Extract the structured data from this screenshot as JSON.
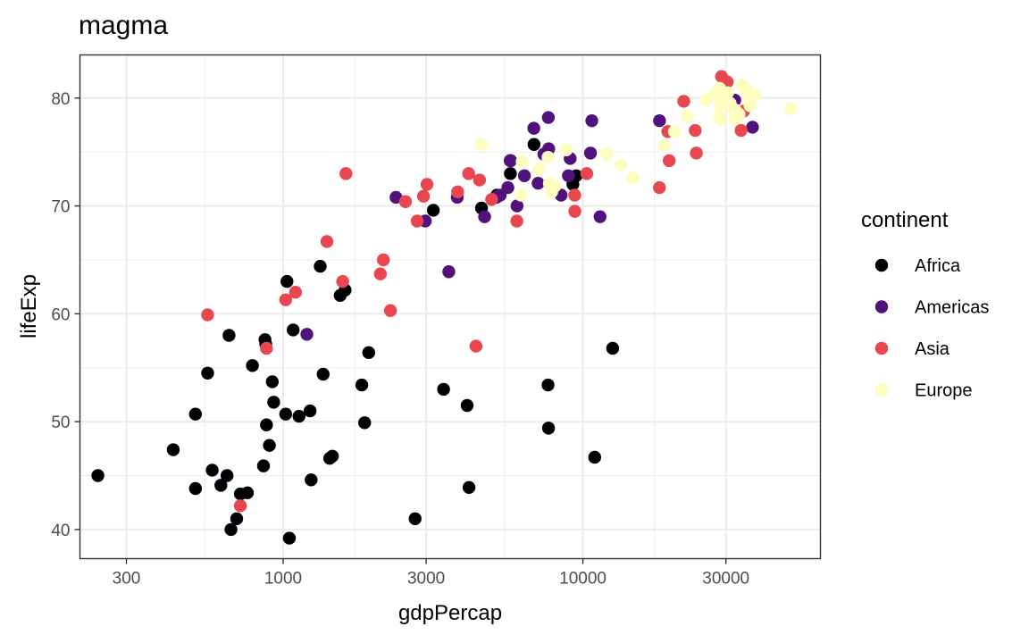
{
  "chart_data": {
    "type": "scatter",
    "title": "magma",
    "xlabel": "gdpPercap",
    "ylabel": "lifeExp",
    "x_scale": "log10",
    "xlim": [
      210,
      62000
    ],
    "ylim": [
      37.3,
      84
    ],
    "x_ticks": [
      300,
      1000,
      3000,
      10000,
      30000
    ],
    "x_tick_labels": [
      "300",
      "1000",
      "3000",
      "10000",
      "30000"
    ],
    "y_ticks": [
      40,
      50,
      60,
      70,
      80
    ],
    "y_tick_labels": [
      "40",
      "50",
      "60",
      "70",
      "80"
    ],
    "grid": true,
    "legend": {
      "title": "continent",
      "position": "right",
      "entries": [
        {
          "name": "Africa",
          "color": "#000004"
        },
        {
          "name": "Americas",
          "color": "#51127C"
        },
        {
          "name": "Asia",
          "color": "#E8474F"
        },
        {
          "name": "Europe",
          "color": "#FCFDBF"
        }
      ]
    },
    "series": [
      {
        "name": "Africa",
        "color": "#000004",
        "points": [
          [
            241,
            45.0
          ],
          [
            1049,
            39.2
          ],
          [
            2756,
            41.0
          ],
          [
            4170,
            43.9
          ],
          [
            430,
            47.4
          ],
          [
            510,
            43.8
          ],
          [
            580,
            45.5
          ],
          [
            620,
            44.1
          ],
          [
            650,
            45.0
          ],
          [
            670,
            40.0
          ],
          [
            700,
            41.0
          ],
          [
            720,
            43.3
          ],
          [
            760,
            43.4
          ],
          [
            860,
            45.9
          ],
          [
            880,
            49.7
          ],
          [
            900,
            47.8
          ],
          [
            920,
            53.7
          ],
          [
            930,
            51.8
          ],
          [
            1020,
            50.7
          ],
          [
            1130,
            50.5
          ],
          [
            1230,
            51.0
          ],
          [
            1240,
            44.6
          ],
          [
            1430,
            46.6
          ],
          [
            1460,
            46.8
          ],
          [
            1830,
            53.4
          ],
          [
            1870,
            49.9
          ],
          [
            1930,
            56.4
          ],
          [
            1030,
            63.0
          ],
          [
            1330,
            64.4
          ],
          [
            1550,
            61.7
          ],
          [
            1610,
            62.2
          ],
          [
            1080,
            58.5
          ],
          [
            1360,
            54.4
          ],
          [
            870,
            57.6
          ],
          [
            875,
            57.2
          ],
          [
            660,
            58.0
          ],
          [
            560,
            54.5
          ],
          [
            510,
            50.7
          ],
          [
            790,
            55.2
          ],
          [
            3430,
            53.0
          ],
          [
            4110,
            51.5
          ],
          [
            7650,
            53.4
          ],
          [
            7680,
            49.4
          ],
          [
            10950,
            46.7
          ],
          [
            12570,
            56.8
          ],
          [
            3170,
            69.6
          ],
          [
            4590,
            69.8
          ],
          [
            5170,
            71.0
          ],
          [
            5730,
            73.0
          ],
          [
            5740,
            74.2
          ],
          [
            6870,
            75.7
          ],
          [
            9260,
            72.0
          ],
          [
            9500,
            72.8
          ]
        ]
      },
      {
        "name": "Americas",
        "color": "#51127C",
        "points": [
          [
            1200,
            58.1
          ],
          [
            2380,
            70.8
          ],
          [
            2980,
            68.6
          ],
          [
            3570,
            63.9
          ],
          [
            3810,
            70.8
          ],
          [
            4700,
            69.0
          ],
          [
            5150,
            70.8
          ],
          [
            5300,
            71.0
          ],
          [
            5620,
            71.7
          ],
          [
            5720,
            74.2
          ],
          [
            6030,
            70.0
          ],
          [
            6860,
            77.2
          ],
          [
            6380,
            72.8
          ],
          [
            7090,
            72.1
          ],
          [
            7410,
            74.8
          ],
          [
            7690,
            75.3
          ],
          [
            8460,
            71.0
          ],
          [
            8950,
            72.8
          ],
          [
            9070,
            74.4
          ],
          [
            7670,
            78.2
          ],
          [
            10600,
            74.9
          ],
          [
            10710,
            77.9
          ],
          [
            11410,
            69.0
          ],
          [
            18010,
            77.9
          ],
          [
            32100,
            79.8
          ],
          [
            36800,
            77.3
          ]
        ]
      },
      {
        "name": "Asia",
        "color": "#E8474F",
        "points": [
          [
            560,
            59.9
          ],
          [
            720,
            42.2
          ],
          [
            880,
            56.8
          ],
          [
            1020,
            61.3
          ],
          [
            1100,
            62.0
          ],
          [
            1400,
            66.7
          ],
          [
            1580,
            63.0
          ],
          [
            1620,
            73.0
          ],
          [
            2160,
            65.0
          ],
          [
            2110,
            63.7
          ],
          [
            2280,
            60.3
          ],
          [
            2560,
            70.4
          ],
          [
            2800,
            68.6
          ],
          [
            2940,
            70.9
          ],
          [
            3020,
            72.0
          ],
          [
            3820,
            71.3
          ],
          [
            4160,
            73.0
          ],
          [
            4400,
            57.0
          ],
          [
            4520,
            72.4
          ],
          [
            4960,
            70.6
          ],
          [
            6020,
            68.6
          ],
          [
            9400,
            69.5
          ],
          [
            9390,
            71.0
          ],
          [
            10300,
            73.0
          ],
          [
            18000,
            71.7
          ],
          [
            19400,
            74.2
          ],
          [
            21700,
            79.7
          ],
          [
            23700,
            77.0
          ],
          [
            23900,
            74.9
          ],
          [
            29000,
            82.0
          ],
          [
            30300,
            81.5
          ],
          [
            33700,
            77.0
          ],
          [
            34400,
            78.8
          ],
          [
            19200,
            76.9
          ]
        ]
      },
      {
        "name": "Europe",
        "color": "#FCFDBF",
        "points": [
          [
            4590,
            75.7
          ],
          [
            6210,
            71.0
          ],
          [
            6270,
            74.1
          ],
          [
            7140,
            73.4
          ],
          [
            7650,
            74.5
          ],
          [
            7730,
            72.1
          ],
          [
            7870,
            71.3
          ],
          [
            8050,
            71.8
          ],
          [
            8810,
            75.2
          ],
          [
            12000,
            74.8
          ],
          [
            13400,
            73.8
          ],
          [
            14700,
            72.6
          ],
          [
            18700,
            75.6
          ],
          [
            20200,
            76.9
          ],
          [
            22300,
            78.3
          ],
          [
            25800,
            79.8
          ],
          [
            27600,
            80.4
          ],
          [
            28500,
            78.3
          ],
          [
            28600,
            80.9
          ],
          [
            28700,
            79.4
          ],
          [
            30400,
            80.5
          ],
          [
            31000,
            79.5
          ],
          [
            32200,
            78.9
          ],
          [
            33200,
            78.5
          ],
          [
            35300,
            80.7
          ],
          [
            36100,
            79.3
          ],
          [
            33900,
            81.2
          ],
          [
            37500,
            80.2
          ],
          [
            28800,
            78.0
          ],
          [
            30500,
            79.6
          ],
          [
            29700,
            80.0
          ],
          [
            31600,
            79.0
          ],
          [
            32200,
            78.1
          ],
          [
            36000,
            80.0
          ],
          [
            49400,
            79.0
          ]
        ]
      }
    ]
  }
}
